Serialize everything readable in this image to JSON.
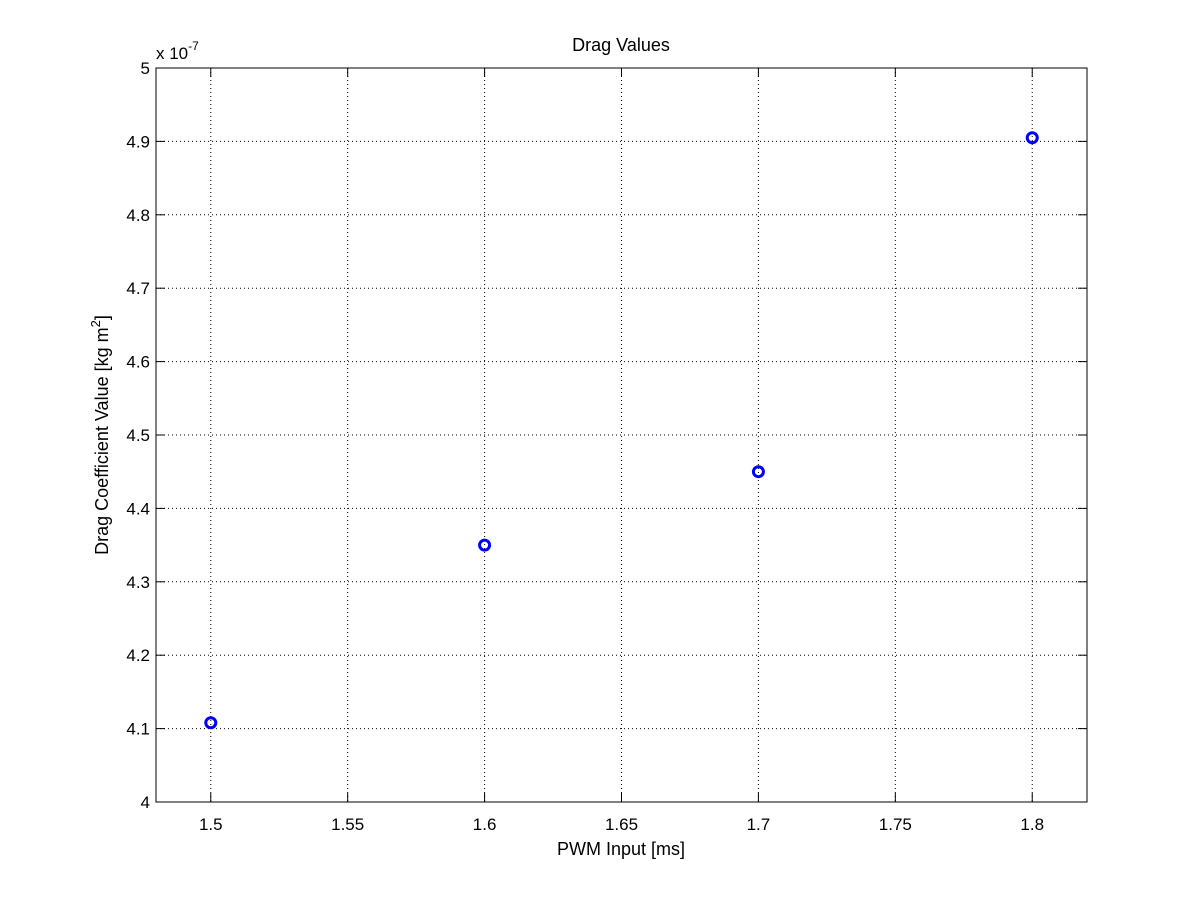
{
  "chart_data": {
    "type": "scatter",
    "title": "Drag Values",
    "xlabel": "PWM Input [ms]",
    "ylabel": "Drag Coefficient Value [kg m",
    "ylabel_superscript": "2",
    "ylabel_close": "]",
    "y_exponent_base": "x 10",
    "y_exponent_power": "-7",
    "xlim": [
      1.48,
      1.82
    ],
    "ylim": [
      4.0,
      5.0
    ],
    "x_ticks": [
      1.5,
      1.55,
      1.6,
      1.65,
      1.7,
      1.75,
      1.8
    ],
    "x_tick_labels": [
      "1.5",
      "1.55",
      "1.6",
      "1.65",
      "1.7",
      "1.75",
      "1.8"
    ],
    "y_ticks": [
      4.0,
      4.1,
      4.2,
      4.3,
      4.4,
      4.5,
      4.6,
      4.7,
      4.8,
      4.9,
      5.0
    ],
    "y_tick_labels": [
      "4",
      "4.1",
      "4.2",
      "4.3",
      "4.4",
      "4.5",
      "4.6",
      "4.7",
      "4.8",
      "4.9",
      "5"
    ],
    "grid": true,
    "marker": "circle",
    "series": [
      {
        "color": "#0000ff",
        "x": [
          1.5,
          1.6,
          1.7,
          1.8
        ],
        "y": [
          4.108,
          4.35,
          4.45,
          4.905
        ]
      }
    ]
  }
}
